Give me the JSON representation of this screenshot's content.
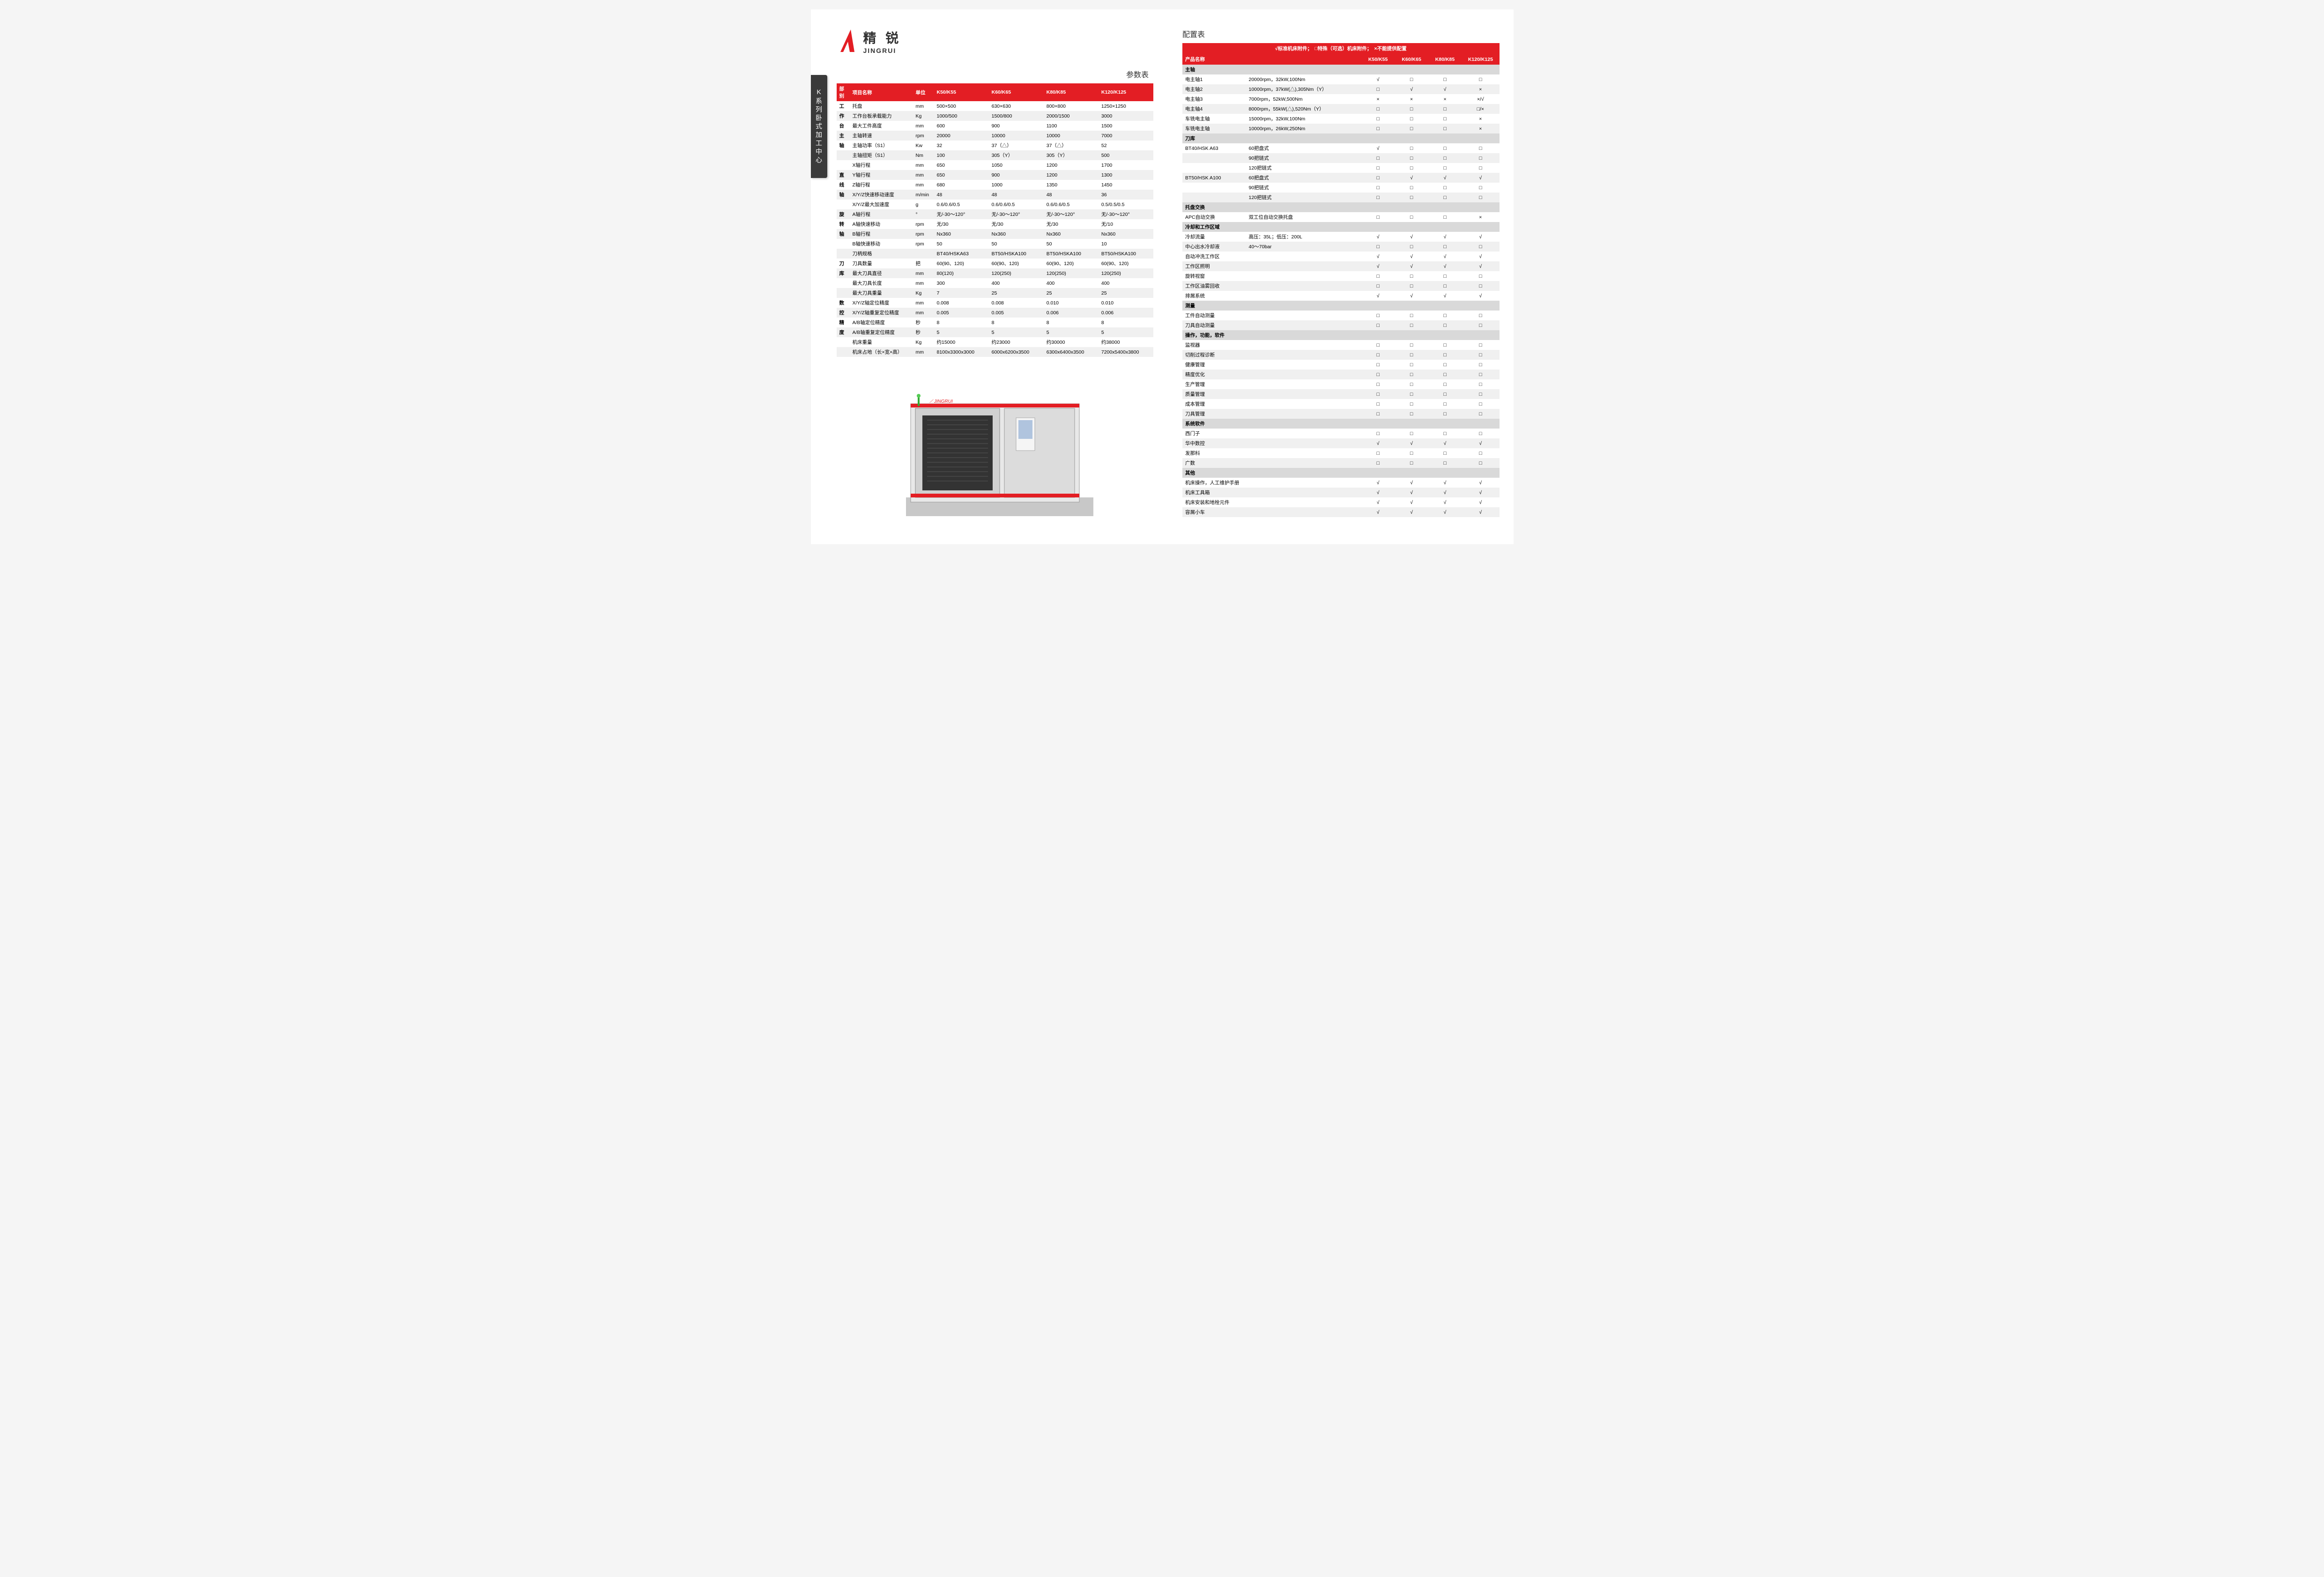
{
  "brand": {
    "cn": "精 锐",
    "en": "JINGRUI"
  },
  "sidebar": "K系列卧式加工中心",
  "left_title": "参数表",
  "right_title": "配置表",
  "legend": "√标准机床附件；　□特殊（可选）机床附件；　×不能提供配置",
  "param_header": {
    "cat": "部别",
    "name": "项目名称",
    "unit": "单位",
    "m1": "K50/K55",
    "m2": "K60/K65",
    "m3": "K80/K85",
    "m4": "K120/K125"
  },
  "param_rows": [
    {
      "cat": "工",
      "name": "托盘",
      "unit": "mm",
      "v": [
        "500×500",
        "630×630",
        "800×800",
        "1250×1250"
      ]
    },
    {
      "cat": "作",
      "name": "工作台板承载能力",
      "unit": "Kg",
      "v": [
        "1000/500",
        "1500/800",
        "2000/1500",
        "3000"
      ]
    },
    {
      "cat": "台",
      "name": "最大工件高度",
      "unit": "mm",
      "v": [
        "600",
        "900",
        "1100",
        "1500"
      ]
    },
    {
      "cat": "主",
      "name": "主轴转速",
      "unit": "rpm",
      "v": [
        "20000",
        "10000",
        "10000",
        "7000"
      ]
    },
    {
      "cat": "轴",
      "name": "主轴功率（S1）",
      "unit": "Kw",
      "v": [
        "32",
        "37（△）",
        "37（△）",
        "52"
      ]
    },
    {
      "cat": "",
      "name": "主轴扭矩（S1）",
      "unit": "Nm",
      "v": [
        "100",
        "305（Y）",
        "305（Y）",
        "500"
      ]
    },
    {
      "cat": "",
      "name": "X轴行程",
      "unit": "mm",
      "v": [
        "650",
        "1050",
        "1200",
        "1700"
      ]
    },
    {
      "cat": "直",
      "name": "Y轴行程",
      "unit": "mm",
      "v": [
        "650",
        "900",
        "1200",
        "1300"
      ]
    },
    {
      "cat": "线",
      "name": "Z轴行程",
      "unit": "mm",
      "v": [
        "680",
        "1000",
        "1350",
        "1450"
      ]
    },
    {
      "cat": "轴",
      "name": "X/Y/Z快速移动速度",
      "unit": "m/min",
      "v": [
        "48",
        "48",
        "48",
        "36"
      ]
    },
    {
      "cat": "",
      "name": "X/Y/Z最大加速度",
      "unit": "g",
      "v": [
        "0.6/0.6/0.5",
        "0.6/0.6/0.5",
        "0.6/0.6/0.5",
        "0.5/0.5/0.5"
      ]
    },
    {
      "cat": "旋",
      "name": "A轴行程",
      "unit": "°",
      "v": [
        "无/-30～120°",
        "无/-30～120°",
        "无/-30～120°",
        "无/-30～120°"
      ]
    },
    {
      "cat": "转",
      "name": "A轴快速移动",
      "unit": "rpm",
      "v": [
        "无/30",
        "无/30",
        "无/30",
        "无/10"
      ]
    },
    {
      "cat": "轴",
      "name": "B轴行程",
      "unit": "rpm",
      "v": [
        "Nx360",
        "Nx360",
        "Nx360",
        "Nx360"
      ]
    },
    {
      "cat": "",
      "name": "B轴快速移动",
      "unit": "rpm",
      "v": [
        "50",
        "50",
        "50",
        "10"
      ]
    },
    {
      "cat": "",
      "name": "刀柄规格",
      "unit": "",
      "v": [
        "BT40/HSKA63",
        "BT50/HSKA100",
        "BT50/HSKA100",
        "BT50/HSKA100"
      ]
    },
    {
      "cat": "刀",
      "name": "刀具数量",
      "unit": "把",
      "v": [
        "60(90、120)",
        "60(90、120)",
        "60(90、120)",
        "60(90、120)"
      ]
    },
    {
      "cat": "库",
      "name": "最大刀具直径",
      "unit": "mm",
      "v": [
        "80(120)",
        "120(250)",
        "120(250)",
        "120(250)"
      ]
    },
    {
      "cat": "",
      "name": "最大刀具长度",
      "unit": "mm",
      "v": [
        "300",
        "400",
        "400",
        "400"
      ]
    },
    {
      "cat": "",
      "name": "最大刀具重量",
      "unit": "Kg",
      "v": [
        "7",
        "25",
        "25",
        "25"
      ]
    },
    {
      "cat": "数",
      "name": "X/Y/Z轴定位精度",
      "unit": "mm",
      "v": [
        "0.008",
        "0.008",
        "0.010",
        "0.010"
      ]
    },
    {
      "cat": "控",
      "name": "X/Y/Z轴重复定位精度",
      "unit": "mm",
      "v": [
        "0.005",
        "0.005",
        "0.006",
        "0.006"
      ]
    },
    {
      "cat": "精",
      "name": "A/B轴定位精度",
      "unit": "秒",
      "v": [
        "8",
        "8",
        "8",
        "8"
      ]
    },
    {
      "cat": "度",
      "name": "A/B轴重复定位精度",
      "unit": "秒",
      "v": [
        "5",
        "5",
        "5",
        "5"
      ]
    },
    {
      "cat": "",
      "name": "机床重量",
      "unit": "Kg",
      "v": [
        "约15000",
        "约23000",
        "约30000",
        "约38000"
      ]
    },
    {
      "cat": "",
      "name": "机床占地（长×宽×高）",
      "unit": "mm",
      "v": [
        "8100x3300x3000",
        "6000x6200x3500",
        "6300x6400x3500",
        "7200x5400x3800"
      ]
    }
  ],
  "cfg_header": {
    "name": "产品名称",
    "m1": "K50/K55",
    "m2": "K60/K65",
    "m3": "K80/K85",
    "m4": "K120/K125"
  },
  "cfg_sections": [
    {
      "title": "主轴",
      "rows": [
        {
          "name": "电主轴1",
          "desc": "20000rpm，32kW,100Nm",
          "v": [
            "√",
            "□",
            "□",
            "□"
          ]
        },
        {
          "name": "电主轴2",
          "desc": "10000rpm，37kW(△),305Nm（Y）",
          "v": [
            "□",
            "√",
            "√",
            "×"
          ]
        },
        {
          "name": "电主轴3",
          "desc": "7000rpm，52kW,500Nm",
          "v": [
            "×",
            "×",
            "×",
            "×/√"
          ]
        },
        {
          "name": "电主轴4",
          "desc": "8000rpm，55kW(△),520Nm（Y）",
          "v": [
            "□",
            "□",
            "□",
            "□/×"
          ]
        },
        {
          "name": "车铣电主轴",
          "desc": "15000rpm，32kW,100Nm",
          "v": [
            "□",
            "□",
            "□",
            "×"
          ]
        },
        {
          "name": "车铣电主轴",
          "desc": "10000rpm，26kW,250Nm",
          "v": [
            "□",
            "□",
            "□",
            "×"
          ]
        }
      ]
    },
    {
      "title": "刀库",
      "rows": [
        {
          "name": "BT40/HSK A63",
          "desc": "60把盘式",
          "v": [
            "√",
            "□",
            "□",
            "□"
          ]
        },
        {
          "name": "",
          "desc": "90把链式",
          "v": [
            "□",
            "□",
            "□",
            "□"
          ]
        },
        {
          "name": "",
          "desc": "120把链式",
          "v": [
            "□",
            "□",
            "□",
            "□"
          ]
        },
        {
          "name": "BT50/HSK A100",
          "desc": "60把盘式",
          "v": [
            "□",
            "√",
            "√",
            "√"
          ]
        },
        {
          "name": "",
          "desc": "90把链式",
          "v": [
            "□",
            "□",
            "□",
            "□"
          ]
        },
        {
          "name": "",
          "desc": "120把链式",
          "v": [
            "□",
            "□",
            "□",
            "□"
          ]
        }
      ]
    },
    {
      "title": "托盘交换",
      "rows": [
        {
          "name": "APC自动交换",
          "desc": "双工位自动交换托盘",
          "v": [
            "□",
            "□",
            "□",
            "×"
          ]
        }
      ]
    },
    {
      "title": "冷却和工作区域",
      "rows": [
        {
          "name": "冷却流量",
          "desc": "高压：35L；低压：200L",
          "v": [
            "√",
            "√",
            "√",
            "√"
          ]
        },
        {
          "name": "中心出水冷却液",
          "desc": "40～70bar",
          "v": [
            "□",
            "□",
            "□",
            "□"
          ]
        },
        {
          "name": "自动冲洗工作区",
          "desc": "",
          "v": [
            "√",
            "√",
            "√",
            "√"
          ]
        },
        {
          "name": "工作区照明",
          "desc": "",
          "v": [
            "√",
            "√",
            "√",
            "√"
          ]
        },
        {
          "name": "旋转视窗",
          "desc": "",
          "v": [
            "□",
            "□",
            "□",
            "□"
          ]
        },
        {
          "name": "工作区油雾回收",
          "desc": "",
          "v": [
            "□",
            "□",
            "□",
            "□"
          ]
        },
        {
          "name": "排屑系统",
          "desc": "",
          "v": [
            "√",
            "√",
            "√",
            "√"
          ]
        }
      ]
    },
    {
      "title": "测量",
      "rows": [
        {
          "name": "工件自动测量",
          "desc": "",
          "v": [
            "□",
            "□",
            "□",
            "□"
          ]
        },
        {
          "name": "刀具自动测量",
          "desc": "",
          "v": [
            "□",
            "□",
            "□",
            "□"
          ]
        }
      ]
    },
    {
      "title": "操作，功能，软件",
      "rows": [
        {
          "name": "监视器",
          "desc": "",
          "v": [
            "□",
            "□",
            "□",
            "□"
          ]
        },
        {
          "name": "切削过程诊断",
          "desc": "",
          "v": [
            "□",
            "□",
            "□",
            "□"
          ]
        },
        {
          "name": "健康管理",
          "desc": "",
          "v": [
            "□",
            "□",
            "□",
            "□"
          ]
        },
        {
          "name": "精度优化",
          "desc": "",
          "v": [
            "□",
            "□",
            "□",
            "□"
          ]
        },
        {
          "name": "生产管理",
          "desc": "",
          "v": [
            "□",
            "□",
            "□",
            "□"
          ]
        },
        {
          "name": "质量管理",
          "desc": "",
          "v": [
            "□",
            "□",
            "□",
            "□"
          ]
        },
        {
          "name": "成本管理",
          "desc": "",
          "v": [
            "□",
            "□",
            "□",
            "□"
          ]
        },
        {
          "name": "刀具管理",
          "desc": "",
          "v": [
            "□",
            "□",
            "□",
            "□"
          ]
        }
      ]
    },
    {
      "title": "系统软件",
      "rows": [
        {
          "name": "西门子",
          "desc": "",
          "v": [
            "□",
            "□",
            "□",
            "□"
          ]
        },
        {
          "name": "华中数控",
          "desc": "",
          "v": [
            "√",
            "√",
            "√",
            "√"
          ]
        },
        {
          "name": "发那科",
          "desc": "",
          "v": [
            "□",
            "□",
            "□",
            "□"
          ]
        },
        {
          "name": "广数",
          "desc": "",
          "v": [
            "□",
            "□",
            "□",
            "□"
          ]
        }
      ]
    },
    {
      "title": "其他",
      "rows": [
        {
          "name": "机床操作，人工维护手册",
          "desc": "",
          "v": [
            "√",
            "√",
            "√",
            "√"
          ]
        },
        {
          "name": "机床工具箱",
          "desc": "",
          "v": [
            "√",
            "√",
            "√",
            "√"
          ]
        },
        {
          "name": "机床安装和地栓元件",
          "desc": "",
          "v": [
            "√",
            "√",
            "√",
            "√"
          ]
        },
        {
          "name": "容屑小车",
          "desc": "",
          "v": [
            "√",
            "√",
            "√",
            "√"
          ]
        }
      ]
    }
  ],
  "colors": {
    "red": "#e31e24",
    "grey_light": "#f0f0f0",
    "grey_section": "#d9d9d9",
    "dark": "#3a3a3a"
  }
}
